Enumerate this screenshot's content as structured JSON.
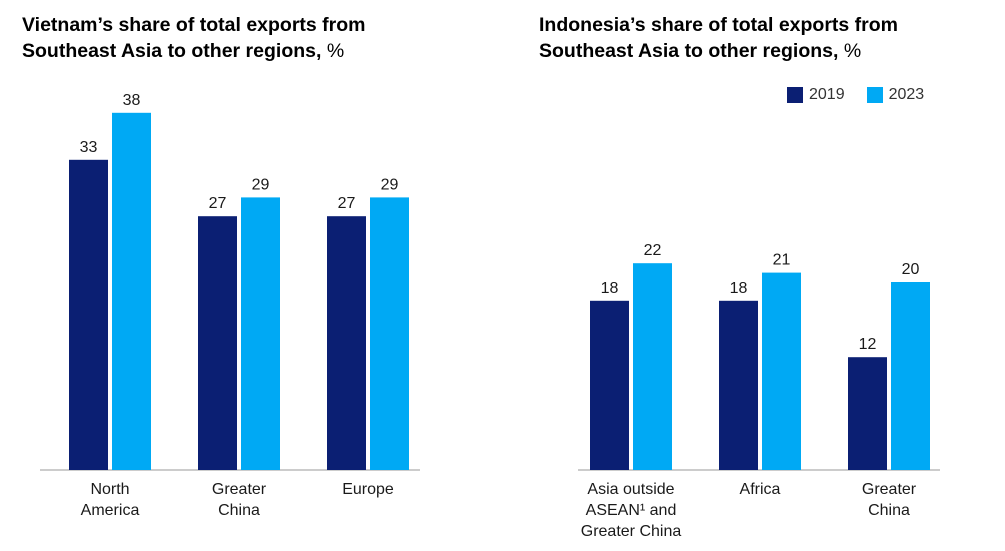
{
  "chart_data": [
    {
      "type": "bar",
      "title": "Vietnam’s share of total exports from Southeast Asia to other regions,",
      "unit": "%",
      "categories": [
        [
          "North",
          "America"
        ],
        [
          "Greater",
          "China"
        ],
        [
          "Europe"
        ]
      ],
      "series": [
        {
          "name": "2019",
          "values": [
            33,
            27,
            27
          ]
        },
        {
          "name": "2023",
          "values": [
            38,
            29,
            29
          ]
        }
      ],
      "ylim": [
        0,
        40
      ],
      "grid": false
    },
    {
      "type": "bar",
      "title": "Indonesia’s share of total exports from Southeast Asia to other regions,",
      "unit": "%",
      "categories": [
        [
          "Asia outside",
          "ASEAN¹ and",
          "Greater China"
        ],
        [
          "Africa"
        ],
        [
          "Greater",
          "China"
        ]
      ],
      "series": [
        {
          "name": "2019",
          "values": [
            18,
            18,
            12
          ]
        },
        {
          "name": "2023",
          "values": [
            22,
            21,
            20
          ]
        }
      ],
      "ylim": [
        0,
        40
      ],
      "grid": false,
      "legend": "top-right"
    }
  ],
  "colors": {
    "2019": "#0b1f73",
    "2023": "#00a9f4",
    "axis": "#9a9a9a",
    "text": "#1a1a1a"
  }
}
